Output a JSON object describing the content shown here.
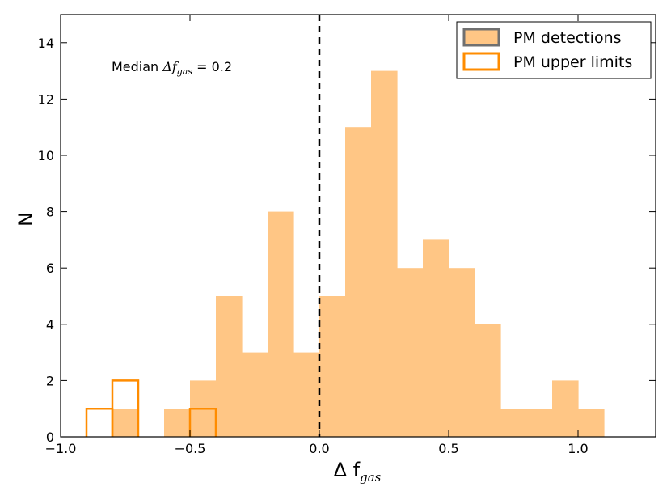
{
  "chart_data": {
    "type": "histogram",
    "bin_width": 0.1,
    "xlim": [
      -1.0,
      1.3
    ],
    "ylim": [
      0,
      15
    ],
    "x_ticks": [
      -1.0,
      -0.5,
      0.0,
      0.5,
      1.0
    ],
    "x_tick_labels": [
      "−1.0",
      "−0.5",
      "0.0",
      "0.5",
      "1.0"
    ],
    "y_ticks": [
      0,
      2,
      4,
      6,
      8,
      10,
      12,
      14
    ],
    "y_tick_labels": [
      "0",
      "2",
      "4",
      "6",
      "8",
      "10",
      "12",
      "14"
    ],
    "xlabel": {
      "main": "Δ f",
      "sub": "gas"
    },
    "ylabel": "N",
    "reference_line": {
      "x": 0.0,
      "style": "dashed",
      "color": "#000000"
    },
    "annotation": {
      "prefix": "Median ",
      "symbol": "Δ",
      "var": "f",
      "sub": "gas",
      "suffix": " = 0.2"
    },
    "series": [
      {
        "name": "PM detections",
        "style": "filled",
        "color": "#ffc685",
        "bins": [
          {
            "x0": -0.8,
            "x1": -0.7,
            "count": 1
          },
          {
            "x0": -0.6,
            "x1": -0.5,
            "count": 1
          },
          {
            "x0": -0.5,
            "x1": -0.4,
            "count": 2
          },
          {
            "x0": -0.4,
            "x1": -0.3,
            "count": 5
          },
          {
            "x0": -0.3,
            "x1": -0.2,
            "count": 3
          },
          {
            "x0": -0.2,
            "x1": -0.1,
            "count": 8
          },
          {
            "x0": -0.1,
            "x1": 0.0,
            "count": 3
          },
          {
            "x0": 0.0,
            "x1": 0.1,
            "count": 5
          },
          {
            "x0": 0.1,
            "x1": 0.2,
            "count": 11
          },
          {
            "x0": 0.2,
            "x1": 0.3,
            "count": 13
          },
          {
            "x0": 0.3,
            "x1": 0.4,
            "count": 6
          },
          {
            "x0": 0.4,
            "x1": 0.5,
            "count": 7
          },
          {
            "x0": 0.5,
            "x1": 0.6,
            "count": 6
          },
          {
            "x0": 0.6,
            "x1": 0.7,
            "count": 4
          },
          {
            "x0": 0.7,
            "x1": 0.8,
            "count": 1
          },
          {
            "x0": 0.8,
            "x1": 0.9,
            "count": 1
          },
          {
            "x0": 0.9,
            "x1": 1.0,
            "count": 2
          },
          {
            "x0": 1.0,
            "x1": 1.1,
            "count": 1
          }
        ]
      },
      {
        "name": "PM upper limits",
        "style": "outline",
        "color": "#ff8c00",
        "bins": [
          {
            "x0": -0.9,
            "x1": -0.8,
            "count": 1
          },
          {
            "x0": -0.8,
            "x1": -0.7,
            "count": 2
          },
          {
            "x0": -0.5,
            "x1": -0.4,
            "count": 1
          }
        ]
      }
    ],
    "legend": {
      "placement": "top-right",
      "entries": [
        {
          "label": "PM detections",
          "fill": "#ffc685",
          "edge": "#707070"
        },
        {
          "label": "PM upper limits",
          "fill": "none",
          "edge": "#ff8c00"
        }
      ]
    }
  }
}
